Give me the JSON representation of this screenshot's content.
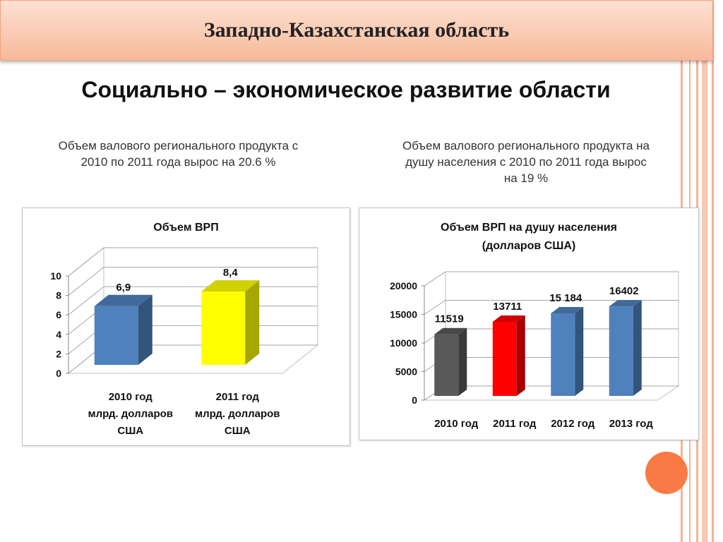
{
  "header": {
    "title": "Западно-Казахстанская область"
  },
  "headline": "Социально – экономическое развитие области",
  "notes": {
    "left": "Объем валового регионального продукта с 2010 по 2011 года вырос на 20.6 %",
    "right": "Объем валового регионального продукта на душу населения с 2010 по 2011 года вырос на 19 %"
  },
  "colors": {
    "banner_border": "#f4a27c",
    "accent_circle": "#f97a45",
    "stripe": "#f6b394"
  },
  "chart_data": [
    {
      "type": "bar",
      "title": "Объем ВРП",
      "categories": [
        [
          "2010 год",
          "млрд. долларов",
          "США"
        ],
        [
          "2011 год",
          "млрд. долларов",
          "США"
        ]
      ],
      "values": [
        6.9,
        8.4
      ],
      "data_labels": [
        "6,9",
        "8,4"
      ],
      "colors": [
        "#4f81bd",
        "#ffff00"
      ],
      "ylim": [
        0,
        10
      ],
      "yticks": [
        0,
        2,
        4,
        6,
        8,
        10
      ],
      "grid": true,
      "three_d": true
    },
    {
      "type": "bar",
      "title": "Объем ВРП на душу населения (долларов США)",
      "title_lines": [
        "Объем ВРП на душу населения",
        "(долларов США)"
      ],
      "categories": [
        "2010 год",
        "2011 год",
        "2012 год",
        "2013 год"
      ],
      "values": [
        11519,
        13711,
        15184,
        16402
      ],
      "data_labels": [
        "11519",
        "13711",
        "15 184",
        "16402"
      ],
      "colors": [
        "#595959",
        "#ff0000",
        "#4f81bd",
        "#4f81bd"
      ],
      "ylim": [
        0,
        20000
      ],
      "yticks": [
        0,
        5000,
        10000,
        15000,
        20000
      ],
      "grid": true,
      "three_d": true
    }
  ]
}
